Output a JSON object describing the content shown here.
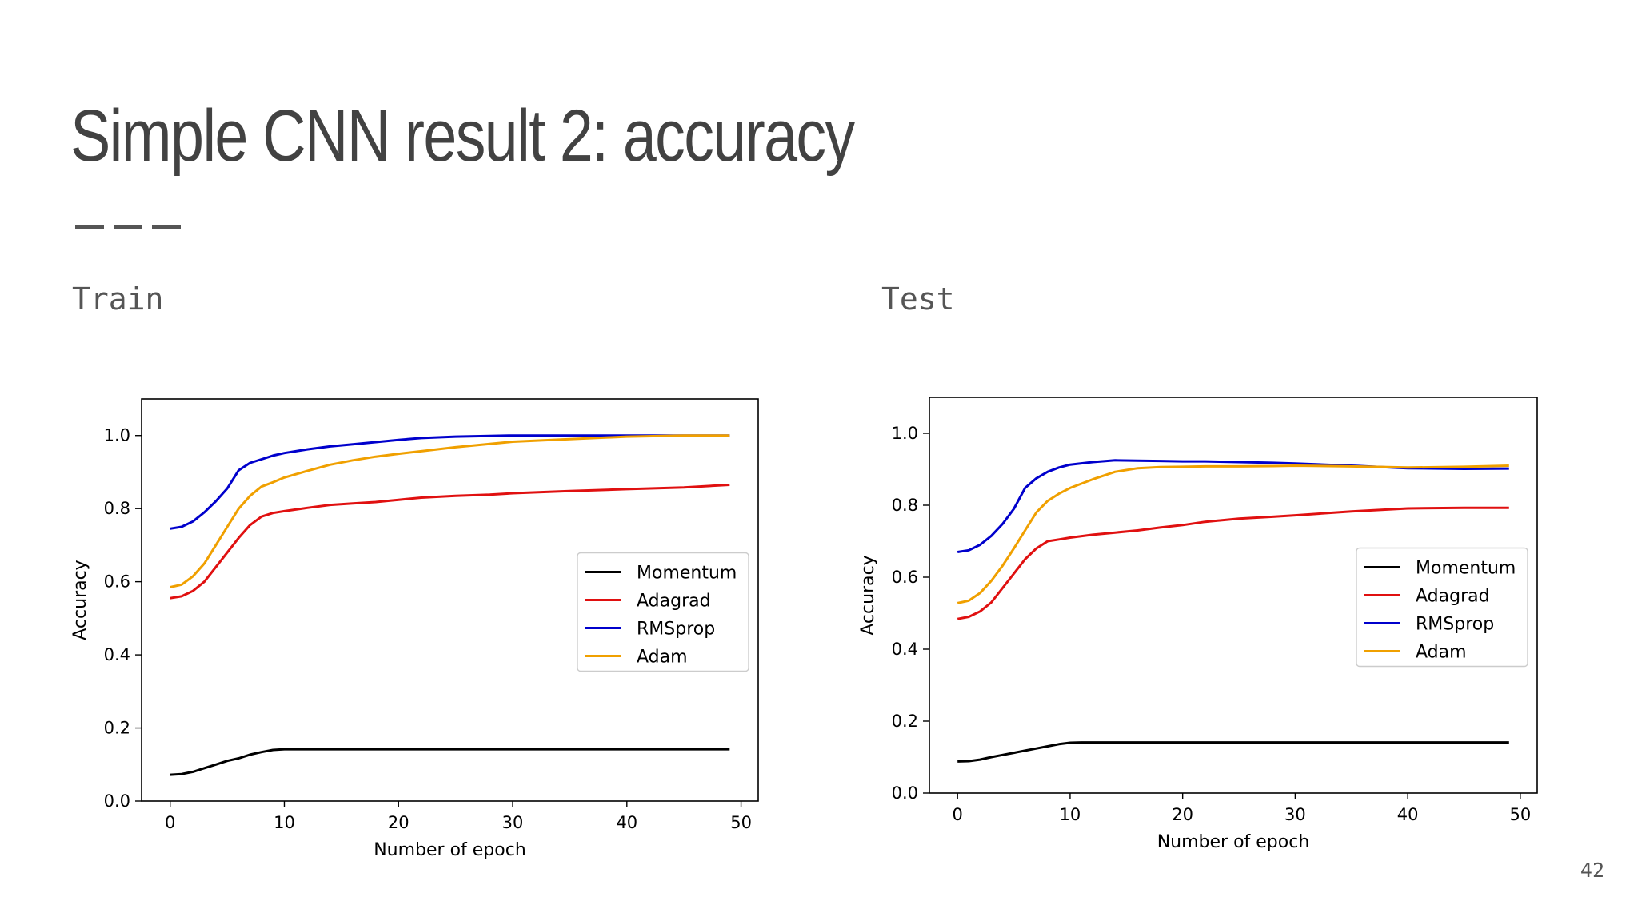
{
  "slide": {
    "title": "Simple CNN result 2: accuracy",
    "page_number": "42",
    "left_label": "Train",
    "right_label": "Test"
  },
  "colors": {
    "Momentum": "#000000",
    "Adagrad": "#e01010",
    "RMSprop": "#0000cc",
    "Adam": "#f0a000"
  },
  "chart_data": [
    {
      "type": "line",
      "xlabel": "Number of epoch",
      "ylabel": "Accuracy",
      "xlim": [
        -2.5,
        51.5
      ],
      "ylim": [
        0.0,
        1.1
      ],
      "xticks": [
        0,
        10,
        20,
        30,
        40,
        50
      ],
      "yticks": [
        0.0,
        0.2,
        0.4,
        0.6,
        0.8,
        1.0
      ],
      "ytick_labels": [
        "0.0",
        "0.2",
        "0.4",
        "0.6",
        "0.8",
        "1.0"
      ],
      "grid": false,
      "legend": "center-right",
      "series": [
        {
          "name": "Momentum",
          "x": [
            0,
            1,
            2,
            3,
            4,
            5,
            6,
            7,
            8,
            9,
            10,
            11,
            15,
            20,
            30,
            40,
            49
          ],
          "y": [
            0.072,
            0.074,
            0.08,
            0.09,
            0.1,
            0.11,
            0.117,
            0.127,
            0.134,
            0.14,
            0.142,
            0.142,
            0.142,
            0.142,
            0.142,
            0.142,
            0.142
          ]
        },
        {
          "name": "Adagrad",
          "x": [
            0,
            1,
            2,
            3,
            4,
            5,
            6,
            7,
            8,
            9,
            10,
            12,
            14,
            16,
            18,
            20,
            22,
            25,
            28,
            30,
            35,
            40,
            45,
            49
          ],
          "y": [
            0.555,
            0.56,
            0.575,
            0.6,
            0.64,
            0.68,
            0.72,
            0.755,
            0.778,
            0.788,
            0.793,
            0.802,
            0.81,
            0.814,
            0.818,
            0.824,
            0.83,
            0.835,
            0.838,
            0.842,
            0.848,
            0.853,
            0.858,
            0.865
          ]
        },
        {
          "name": "RMSprop",
          "x": [
            0,
            1,
            2,
            3,
            4,
            5,
            6,
            7,
            8,
            9,
            10,
            12,
            14,
            16,
            18,
            20,
            22,
            25,
            28,
            30,
            35,
            40,
            45,
            49
          ],
          "y": [
            0.745,
            0.75,
            0.765,
            0.79,
            0.82,
            0.855,
            0.905,
            0.925,
            0.935,
            0.945,
            0.952,
            0.962,
            0.97,
            0.976,
            0.982,
            0.988,
            0.993,
            0.997,
            0.999,
            1.0,
            1.0,
            1.0,
            1.0,
            1.0
          ]
        },
        {
          "name": "Adam",
          "x": [
            0,
            1,
            2,
            3,
            4,
            5,
            6,
            7,
            8,
            9,
            10,
            12,
            14,
            16,
            18,
            20,
            22,
            25,
            28,
            30,
            35,
            40,
            45,
            49
          ],
          "y": [
            0.585,
            0.592,
            0.615,
            0.65,
            0.7,
            0.75,
            0.8,
            0.835,
            0.86,
            0.872,
            0.885,
            0.903,
            0.92,
            0.932,
            0.942,
            0.95,
            0.957,
            0.968,
            0.977,
            0.983,
            0.99,
            0.997,
            1.0,
            1.0
          ]
        }
      ]
    },
    {
      "type": "line",
      "xlabel": "Number of epoch",
      "ylabel": "Accuracy",
      "xlim": [
        -2.5,
        51.5
      ],
      "ylim": [
        0.0,
        1.1
      ],
      "xticks": [
        0,
        10,
        20,
        30,
        40,
        50
      ],
      "yticks": [
        0.0,
        0.2,
        0.4,
        0.6,
        0.8,
        1.0
      ],
      "ytick_labels": [
        "0.0",
        "0.2",
        "0.4",
        "0.6",
        "0.8",
        "1.0"
      ],
      "grid": false,
      "legend": "center-right",
      "series": [
        {
          "name": "Momentum",
          "x": [
            0,
            1,
            2,
            3,
            4,
            5,
            6,
            7,
            8,
            9,
            10,
            11,
            15,
            20,
            30,
            40,
            49
          ],
          "y": [
            0.088,
            0.089,
            0.093,
            0.1,
            0.106,
            0.112,
            0.118,
            0.124,
            0.13,
            0.136,
            0.14,
            0.141,
            0.141,
            0.141,
            0.141,
            0.141,
            0.141
          ]
        },
        {
          "name": "Adagrad",
          "x": [
            0,
            1,
            2,
            3,
            4,
            5,
            6,
            7,
            8,
            9,
            10,
            12,
            14,
            16,
            18,
            20,
            22,
            25,
            28,
            30,
            35,
            40,
            45,
            49
          ],
          "y": [
            0.484,
            0.49,
            0.505,
            0.53,
            0.57,
            0.61,
            0.65,
            0.68,
            0.7,
            0.705,
            0.71,
            0.718,
            0.724,
            0.73,
            0.738,
            0.745,
            0.754,
            0.763,
            0.768,
            0.772,
            0.783,
            0.791,
            0.793,
            0.793
          ]
        },
        {
          "name": "RMSprop",
          "x": [
            0,
            1,
            2,
            3,
            4,
            5,
            6,
            7,
            8,
            9,
            10,
            12,
            14,
            16,
            18,
            20,
            22,
            25,
            28,
            30,
            35,
            40,
            45,
            49
          ],
          "y": [
            0.67,
            0.675,
            0.69,
            0.715,
            0.748,
            0.79,
            0.848,
            0.875,
            0.893,
            0.905,
            0.913,
            0.92,
            0.925,
            0.924,
            0.923,
            0.922,
            0.922,
            0.92,
            0.918,
            0.916,
            0.91,
            0.903,
            0.901,
            0.902
          ]
        },
        {
          "name": "Adam",
          "x": [
            0,
            1,
            2,
            3,
            4,
            5,
            6,
            7,
            8,
            9,
            10,
            12,
            14,
            16,
            18,
            20,
            22,
            25,
            28,
            30,
            35,
            40,
            45,
            49
          ],
          "y": [
            0.528,
            0.535,
            0.556,
            0.59,
            0.632,
            0.68,
            0.73,
            0.78,
            0.812,
            0.832,
            0.848,
            0.872,
            0.893,
            0.903,
            0.906,
            0.907,
            0.908,
            0.908,
            0.909,
            0.91,
            0.908,
            0.905,
            0.907,
            0.91
          ]
        }
      ]
    }
  ]
}
